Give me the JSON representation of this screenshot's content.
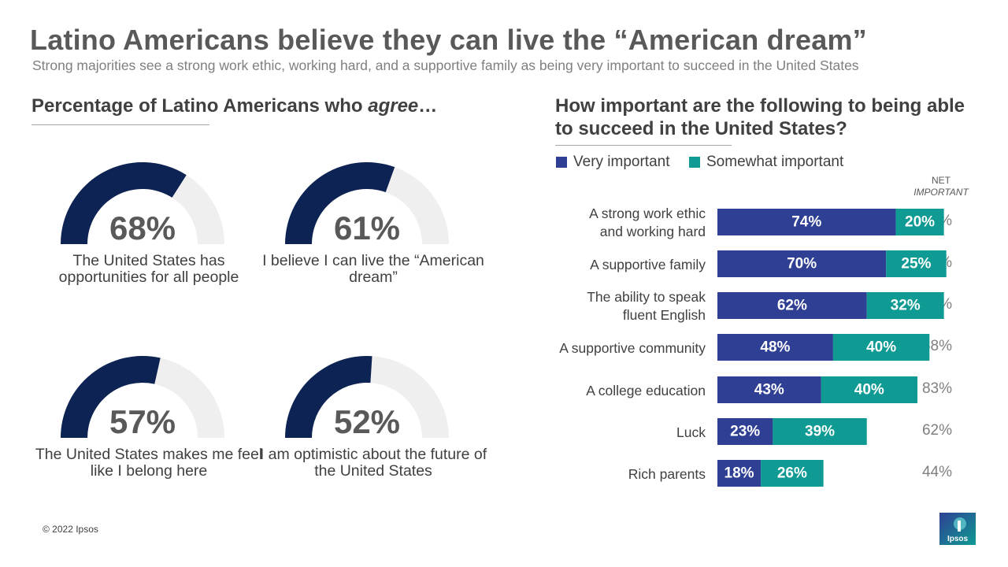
{
  "title": "Latino Americans believe they can live the “American dream”",
  "subtitle": "Strong majorities see a strong work ethic, working hard, and a supportive family as being very important to succeed in the United States",
  "left_section": {
    "heading_prefix": "Percentage of Latino Americans who ",
    "heading_em": "agree",
    "heading_suffix": "…",
    "gauges": [
      {
        "value": 68,
        "label_text": "68%",
        "caption": "The United States has opportunities for all people"
      },
      {
        "value": 61,
        "label_text": "61%",
        "caption": "I believe I can live the “American dream”"
      },
      {
        "value": 57,
        "label_text": "57%",
        "caption": "The United States makes me feel like I belong here"
      },
      {
        "value": 52,
        "label_text": "52%",
        "caption": "I am optimistic about the future of the United States"
      }
    ]
  },
  "right_section": {
    "heading": "How important are the following to being able to succeed in the United States?",
    "net_heading_line1": "NET",
    "net_heading_line2": "IMPORTANT"
  },
  "colors": {
    "very_important": "#2e3f94",
    "somewhat_important": "#0f9b93",
    "gauge_fill": "#0d2353",
    "gauge_track": "#efefef"
  },
  "chart_data": {
    "type": "bar",
    "orientation": "horizontal",
    "stacked": true,
    "title": "How important are the following to being able to succeed in the United States?",
    "categories": [
      "A strong work ethic and working hard",
      "A supportive family",
      "The ability to speak fluent English",
      "A supportive community",
      "A college education",
      "Luck",
      "Rich parents"
    ],
    "category_lines": [
      [
        "A strong work ethic",
        "and working hard"
      ],
      [
        "A supportive family"
      ],
      [
        "The ability to speak",
        "fluent English"
      ],
      [
        "A supportive community"
      ],
      [
        "A college education"
      ],
      [
        "Luck"
      ],
      [
        "Rich parents"
      ]
    ],
    "series": [
      {
        "name": "Very important",
        "values": [
          74,
          70,
          62,
          48,
          43,
          23,
          18
        ]
      },
      {
        "name": "Somewhat important",
        "values": [
          20,
          25,
          32,
          40,
          40,
          39,
          26
        ]
      }
    ],
    "net": {
      "name": "NET IMPORTANT",
      "values": [
        "94%",
        "94%",
        "94%",
        "88%",
        "83%",
        "62%",
        "44%"
      ]
    },
    "xlim": [
      0,
      100
    ],
    "legend_position": "top-left",
    "grid": false
  },
  "footer": {
    "copyright": "© 2022 Ipsos",
    "logo_text": "Ipsos"
  }
}
